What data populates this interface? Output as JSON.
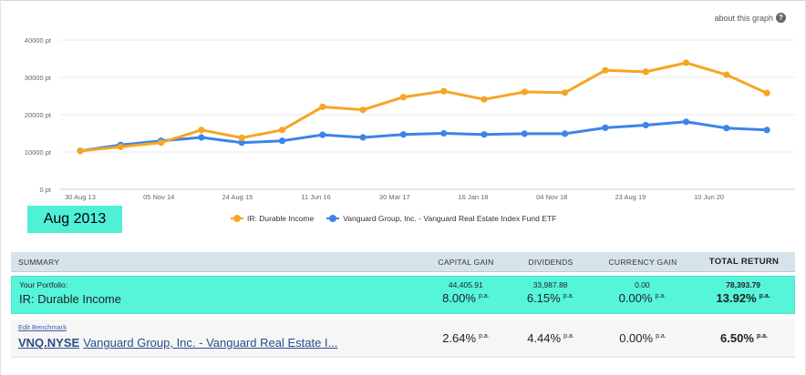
{
  "about_link": "about this graph",
  "about_icon": "question-icon",
  "date_badge": "Aug 2013",
  "colors": {
    "portfolio": "#f5a623",
    "benchmark": "#3d84e8",
    "highlight": "#55f5da",
    "header_bg": "#d7e3ea"
  },
  "legend": [
    {
      "label": "IR: Durable Income"
    },
    {
      "label": "Vanguard Group, Inc. - Vanguard Real Estate Index Fund ETF"
    }
  ],
  "chart_data": {
    "type": "line",
    "y_ticks": [
      "0 pt",
      "10000 pt",
      "20000 pt",
      "30000 pt",
      "40000 pt"
    ],
    "ylim": [
      0,
      40000
    ],
    "x_ticks": [
      "30 Aug 13",
      "05 Nov 14",
      "24 Aug 15",
      "11 Jun 16",
      "30 Mar 17",
      "16 Jan 18",
      "04 Nov 18",
      "23 Aug 19",
      "10 Jun 20"
    ],
    "grid": true,
    "legend_position": "bottom",
    "series": [
      {
        "name": "IR: Durable Income",
        "values": [
          10300,
          11400,
          12500,
          15900,
          13800,
          15900,
          22100,
          21300,
          24700,
          26300,
          24100,
          26100,
          25900,
          31900,
          31500,
          33900,
          30700,
          25800
        ]
      },
      {
        "name": "Vanguard Group, Inc. - Vanguard Real Estate Index Fund ETF",
        "values": [
          10300,
          11900,
          13000,
          13900,
          12500,
          13000,
          14600,
          13900,
          14700,
          15000,
          14700,
          14900,
          14900,
          16500,
          17200,
          18100,
          16400,
          15900
        ]
      }
    ]
  },
  "summary": {
    "header": {
      "label": "SUMMARY",
      "capital_gain": "CAPITAL GAIN",
      "dividends": "DIVIDENDS",
      "currency_gain": "CURRENCY GAIN",
      "total_return": "TOTAL RETURN"
    },
    "portfolio": {
      "caption": "Your Portfolio:",
      "name": "IR: Durable Income",
      "capital_gain": {
        "value": "44,405.91",
        "pct": "8.00%"
      },
      "dividends": {
        "value": "33,987.88",
        "pct": "6.15%"
      },
      "currency_gain": {
        "value": "0.00",
        "pct": "0.00%"
      },
      "total_return": {
        "value": "78,393.79",
        "pct": "13.92%"
      },
      "pa": "p.a."
    },
    "benchmark": {
      "edit_link": "Edit Benchmark",
      "ticker": "VNQ.NYSE",
      "name": "Vanguard Group, Inc. - Vanguard Real Estate I...",
      "capital_gain_pct": "2.64%",
      "dividends_pct": "4.44%",
      "currency_gain_pct": "0.00%",
      "total_return_pct": "6.50%",
      "pa": "p.a."
    }
  }
}
